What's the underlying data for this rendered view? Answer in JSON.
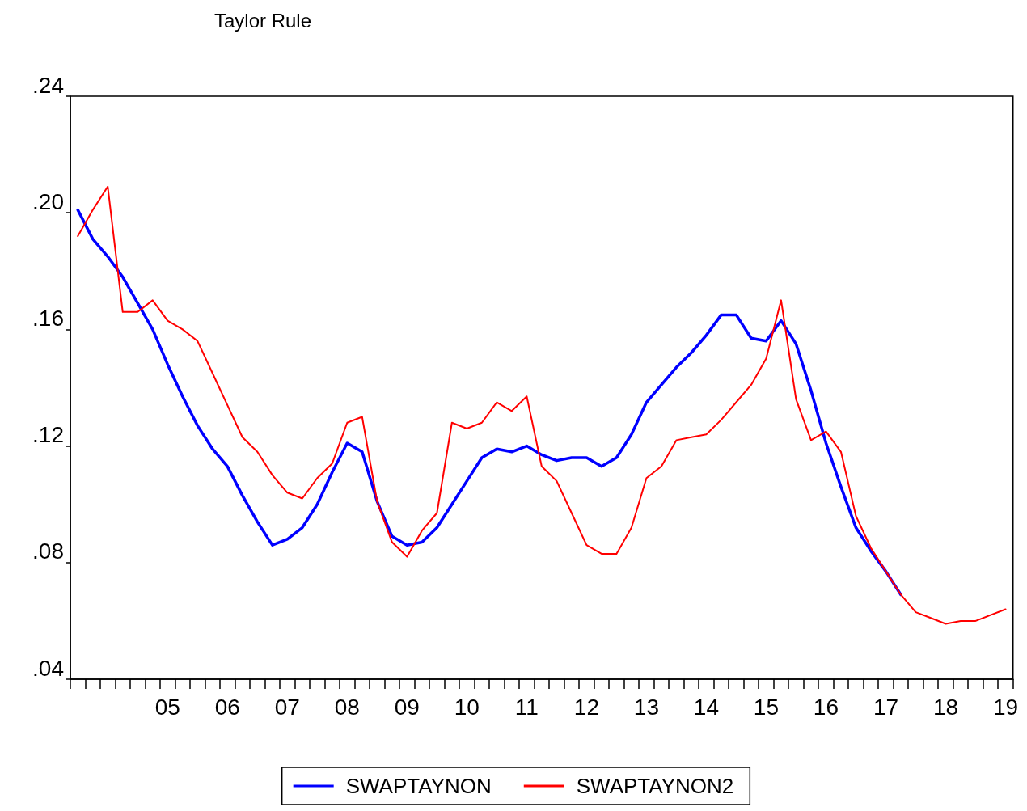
{
  "chart_data": {
    "type": "line",
    "title": "Taylor Rule",
    "legend": "bottom",
    "grid": false,
    "marker": "none",
    "line_style": "solid",
    "categories": [
      null,
      null,
      null,
      null,
      null,
      null,
      "05",
      null,
      null,
      null,
      "06",
      null,
      null,
      null,
      "07",
      null,
      null,
      null,
      "08",
      null,
      null,
      null,
      "09",
      null,
      null,
      null,
      "10",
      null,
      null,
      null,
      "11",
      null,
      null,
      null,
      "12",
      null,
      null,
      null,
      "13",
      null,
      null,
      null,
      "14",
      null,
      null,
      null,
      "15",
      null,
      null,
      null,
      "16",
      null,
      null,
      null,
      "17",
      null,
      null,
      null,
      "18",
      null,
      null,
      null,
      "19"
    ],
    "ylim": [
      0.04,
      0.24
    ],
    "yticks": [
      {
        "value": 0.04,
        "label": ".04"
      },
      {
        "value": 0.08,
        "label": ".08"
      },
      {
        "value": 0.12,
        "label": ".12"
      },
      {
        "value": 0.16,
        "label": ".16"
      },
      {
        "value": 0.2,
        "label": ".20"
      },
      {
        "value": 0.24,
        "label": ".24"
      }
    ],
    "series": [
      {
        "name": "SWAPTAYNON",
        "color": "#0000ff",
        "values": [
          0.201,
          0.191,
          0.185,
          0.178,
          0.169,
          0.16,
          0.148,
          0.137,
          0.127,
          0.119,
          0.113,
          0.103,
          0.094,
          0.086,
          0.088,
          0.092,
          0.1,
          0.111,
          0.121,
          0.118,
          0.101,
          0.089,
          0.086,
          0.087,
          0.092,
          0.1,
          0.108,
          0.116,
          0.119,
          0.118,
          0.12,
          0.117,
          0.115,
          0.116,
          0.116,
          0.113,
          0.116,
          0.124,
          0.135,
          0.141,
          0.147,
          0.152,
          0.158,
          0.165,
          0.165,
          0.157,
          0.156,
          0.163,
          0.155,
          0.139,
          0.121,
          0.106,
          0.092,
          0.084,
          0.077,
          0.069,
          null,
          null,
          null,
          null,
          null,
          null,
          null
        ]
      },
      {
        "name": "SWAPTAYNON2",
        "color": "#ff0000",
        "values": [
          0.192,
          0.201,
          0.209,
          0.166,
          0.166,
          0.17,
          0.163,
          0.16,
          0.156,
          0.145,
          0.134,
          0.123,
          0.118,
          0.11,
          0.104,
          0.102,
          0.109,
          0.114,
          0.128,
          0.13,
          0.101,
          0.087,
          0.082,
          0.091,
          0.097,
          0.128,
          0.126,
          0.128,
          0.135,
          0.132,
          0.137,
          0.113,
          0.108,
          0.097,
          0.086,
          0.083,
          0.083,
          0.092,
          0.109,
          0.113,
          0.122,
          0.123,
          0.124,
          0.129,
          0.135,
          0.141,
          0.15,
          0.17,
          0.136,
          0.122,
          0.125,
          0.118,
          0.096,
          0.085,
          0.077,
          0.069,
          0.063,
          0.061,
          0.059,
          0.06,
          0.06,
          0.062,
          0.064
        ]
      }
    ]
  }
}
